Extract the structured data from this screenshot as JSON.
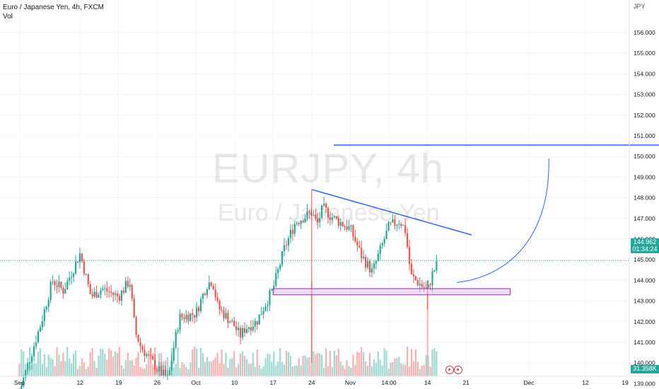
{
  "legend": {
    "title": "Euro / Japanese Yen, 4h, FXCM",
    "volume_label": "Vol"
  },
  "watermark": {
    "symbol_line": "EURJPY, 4h",
    "name_line": "Euro / Japanese Yen"
  },
  "axis": {
    "currency": "JPY"
  },
  "last_price": {
    "value": "144.962",
    "countdown": "01:34:24"
  },
  "last_volume": {
    "value": "31.358K"
  },
  "colors": {
    "up": "#26a69a",
    "down": "#ef5350",
    "vol_up": "#9ed8d2",
    "vol_down": "#f5b1b0",
    "trendline": "#2962ff",
    "zone_fill": "#e1bee7",
    "zone_border": "#9c27b0",
    "last_line": "#26a69a"
  },
  "chart_data": {
    "type": "candlestick",
    "title": "Euro / Japanese Yen, 4h, FXCM",
    "y_ticks": [
      "156.000",
      "155.000",
      "154.000",
      "153.000",
      "152.000",
      "151.000",
      "150.000",
      "149.000",
      "148.000",
      "147.000",
      "146.000",
      "145.000",
      "144.000",
      "143.000",
      "142.000",
      "141.000",
      "140.000",
      "139.000"
    ],
    "x_ticks": [
      "Sep",
      "12",
      "19",
      "26",
      "Oct",
      "10",
      "17",
      "24",
      "Nov",
      "14:00",
      "14",
      "21",
      "Dec",
      "12",
      "19"
    ],
    "ylim": [
      138.8,
      156.6
    ],
    "price_path": [
      [
        "2022-09-01",
        138.6
      ],
      [
        "2022-09-05",
        142.0
      ],
      [
        "2022-09-07",
        144.0
      ],
      [
        "2022-09-09",
        143.5
      ],
      [
        "2022-09-12",
        145.3
      ],
      [
        "2022-09-14",
        143.2
      ],
      [
        "2022-09-16",
        143.6
      ],
      [
        "2022-09-19",
        143.2
      ],
      [
        "2022-09-21",
        144.0
      ],
      [
        "2022-09-22",
        141.5
      ],
      [
        "2022-09-23",
        140.8
      ],
      [
        "2022-09-26",
        139.7
      ],
      [
        "2022-09-28",
        139.2
      ],
      [
        "2022-09-29",
        140.8
      ],
      [
        "2022-09-30",
        142.2
      ],
      [
        "2022-10-03",
        142.4
      ],
      [
        "2022-10-05",
        143.8
      ],
      [
        "2022-10-06",
        144.0
      ],
      [
        "2022-10-07",
        142.7
      ],
      [
        "2022-10-10",
        141.8
      ],
      [
        "2022-10-11",
        141.3
      ],
      [
        "2022-10-12",
        141.7
      ],
      [
        "2022-10-14",
        142.0
      ],
      [
        "2022-10-17",
        143.6
      ],
      [
        "2022-10-19",
        145.5
      ],
      [
        "2022-10-21",
        146.8
      ],
      [
        "2022-10-24",
        147.3
      ],
      [
        "2022-10-25",
        146.7
      ],
      [
        "2022-10-26",
        147.5
      ],
      [
        "2022-10-28",
        147.0
      ],
      [
        "2022-10-31",
        146.5
      ],
      [
        "2022-11-02",
        145.2
      ],
      [
        "2022-11-04",
        144.4
      ],
      [
        "2022-11-07",
        146.6
      ],
      [
        "2022-11-09",
        146.9
      ],
      [
        "2022-11-10",
        146.4
      ],
      [
        "2022-11-11",
        144.2
      ],
      [
        "2022-11-14",
        143.5
      ],
      [
        "2022-11-15",
        144.4
      ],
      [
        "2022-11-16",
        144.9
      ]
    ],
    "volume_scale": [
      0,
      100
    ],
    "drawings": [
      {
        "type": "horizontal-line",
        "y": 150.55,
        "x_from": "2022-10-28",
        "x_to": "2022-12-26"
      },
      {
        "type": "trendline",
        "from": [
          "2022-10-24",
          148.4
        ],
        "to": [
          "2022-11-22",
          146.2
        ]
      },
      {
        "type": "zone",
        "y_from": 143.3,
        "y_to": 143.6,
        "x_from": "2022-10-17",
        "x_to": "2022-11-29"
      },
      {
        "type": "projection-curve",
        "from": [
          "2022-11-16",
          143.9
        ],
        "to": [
          "2022-12-06",
          149.9
        ]
      }
    ]
  }
}
